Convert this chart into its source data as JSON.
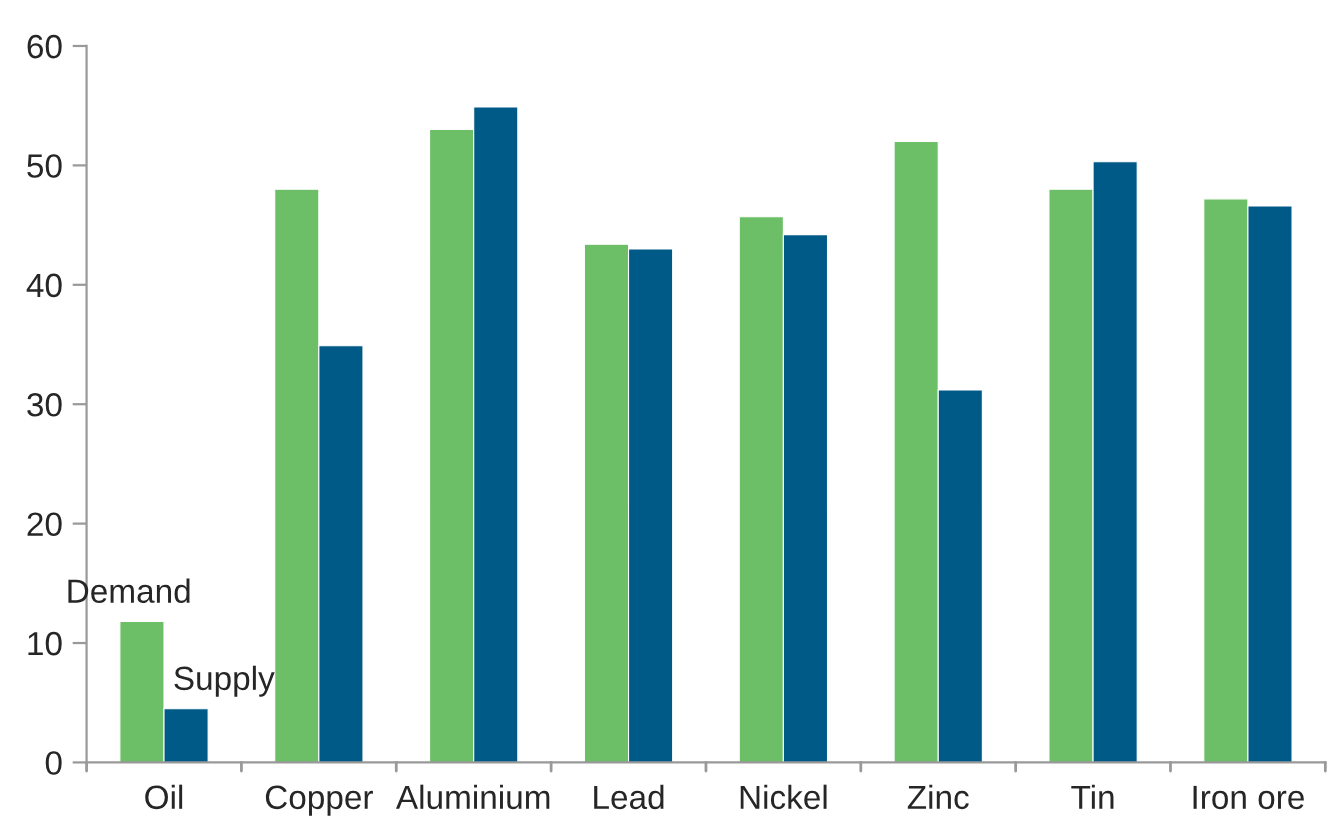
{
  "chart_data": {
    "type": "bar",
    "categories": [
      "Oil",
      "Copper",
      "Aluminium",
      "Lead",
      "Nickel",
      "Zinc",
      "Tin",
      "Iron ore"
    ],
    "series": [
      {
        "name": "Demand",
        "color": "#6dbf67",
        "values": [
          11.8,
          48.0,
          53.0,
          43.4,
          45.7,
          52.0,
          48.0,
          47.2
        ]
      },
      {
        "name": "Supply",
        "color": "#005a87",
        "values": [
          4.5,
          34.9,
          54.9,
          43.0,
          44.2,
          31.2,
          50.3,
          46.6
        ]
      }
    ],
    "ylim": [
      0,
      60
    ],
    "yticks": [
      0,
      10,
      20,
      30,
      40,
      50,
      60
    ],
    "grid": false,
    "legend": false
  }
}
